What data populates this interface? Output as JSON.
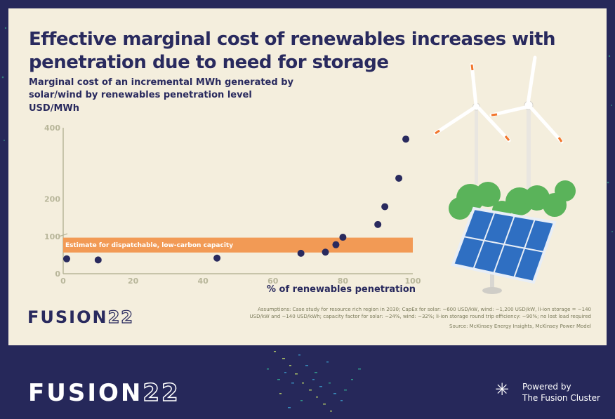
{
  "slide": {
    "title": "Effective marginal cost of renewables increases with penetration due to need for storage",
    "subtitle": "Marginal cost of an incremental MWh generated by solar/wind by renewables penetration level",
    "unit": "USD/MWh",
    "assumptions": "Assumptions: Case study for resource rich region in 2030; CapEx for solar: ~600 USD/kW, wind: ~1,200 USD/kW, li-ion storage = ~140 USD/kW and ~140 USD/kWh; capacity factor for solar: ~24%, wind: ~32%; li-ion storage round trip efficiency: ~90%; no lost load required",
    "source": "Source: McKinsey Energy Insights, McKinsey Power Model"
  },
  "brand": {
    "word": "FUSION",
    "num": "22"
  },
  "footer": {
    "word": "FUSION",
    "num": "22",
    "powered_line1": "Powered by",
    "powered_line2": "The Fusion Cluster"
  },
  "colors": {
    "navy": "#292a5e",
    "band": "#f29a55",
    "axis": "#b8b69a",
    "background": "#f4eedd"
  },
  "chart_data": {
    "type": "scatter",
    "xlabel": "% of renewables penetration",
    "ylabel": "USD/MWh",
    "xlim": [
      0,
      100
    ],
    "x_ticks": [
      "0",
      "20",
      "40",
      "60",
      "80",
      "100"
    ],
    "y_ticks_lower": [
      "0",
      "100"
    ],
    "y_ticks_upper": [
      "200",
      "400"
    ],
    "points": [
      {
        "x": 1,
        "y": 40
      },
      {
        "x": 10,
        "y": 37
      },
      {
        "x": 44,
        "y": 42
      },
      {
        "x": 68,
        "y": 55
      },
      {
        "x": 75,
        "y": 58
      },
      {
        "x": 78,
        "y": 78
      },
      {
        "x": 80,
        "y": 98
      },
      {
        "x": 90,
        "y": 128
      },
      {
        "x": 92,
        "y": 178
      },
      {
        "x": 96,
        "y": 258
      },
      {
        "x": 98,
        "y": 368
      }
    ],
    "band": {
      "label": "Estimate for dispatchable, low-carbon capacity",
      "x_range": [
        0,
        100
      ],
      "y_range": [
        57,
        97
      ]
    }
  }
}
